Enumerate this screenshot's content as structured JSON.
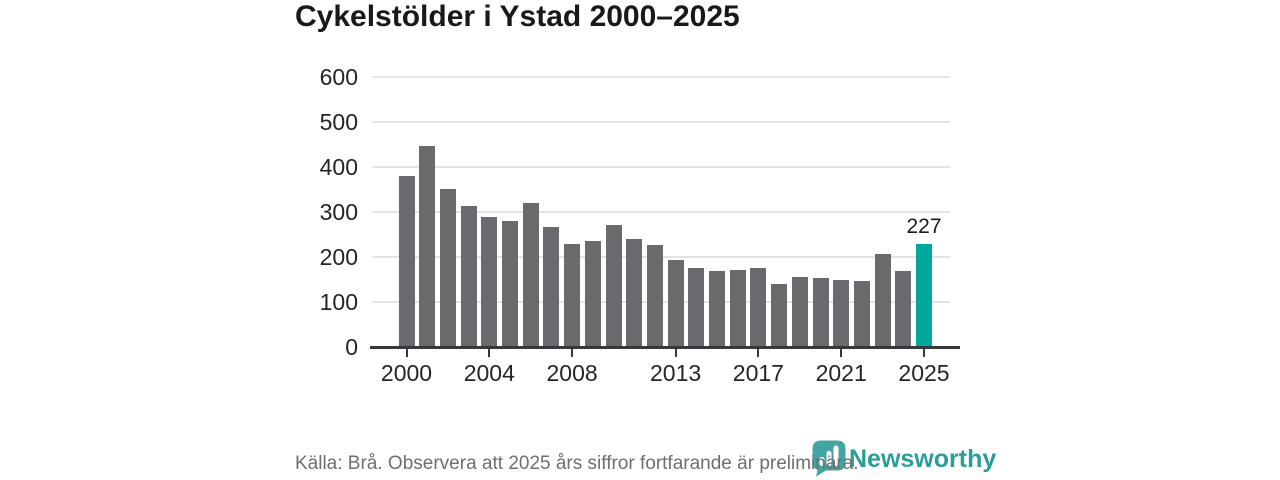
{
  "header": {
    "title": "Cykelstölder i Ystad 2000–2025"
  },
  "chart_data": {
    "type": "bar",
    "title": "Cykelstölder i Ystad 2000–2025",
    "categories": [
      2000,
      2001,
      2002,
      2003,
      2004,
      2005,
      2006,
      2007,
      2008,
      2009,
      2010,
      2011,
      2012,
      2013,
      2014,
      2015,
      2016,
      2017,
      2018,
      2019,
      2020,
      2021,
      2022,
      2023,
      2024,
      2025
    ],
    "values": [
      378,
      444,
      348,
      312,
      287,
      277,
      318,
      265,
      227,
      233,
      268,
      237,
      224,
      192,
      174,
      166,
      170,
      174,
      137,
      154,
      152,
      146,
      144,
      204,
      166,
      227
    ],
    "xlabel": "",
    "ylabel": "",
    "ylim": [
      0,
      600
    ],
    "yticks": [
      0,
      100,
      200,
      300,
      400,
      500,
      600
    ],
    "xtick_years": [
      2000,
      2004,
      2008,
      2013,
      2017,
      2021,
      2025
    ],
    "grid": true,
    "legend": "none",
    "bar_color": "#69696e",
    "highlight_color": "#00a79d",
    "highlight_year": 2025,
    "highlight_value_label": "227"
  },
  "footer": {
    "source_note": "Källa: Brå. Observera att 2025 års siffror fortfarande är preliminära.",
    "logo_text": "Newsworthy"
  },
  "colors": {
    "background": "#ffffff",
    "bar_default": "#69696e",
    "bar_highlight": "#00a79d",
    "gridline": "#e4e4e4",
    "axis": "#38383c",
    "title_text": "#191919",
    "tick_text": "#252525",
    "source_text": "#6f6f6f",
    "logo_teal": "#2a9d9b"
  }
}
